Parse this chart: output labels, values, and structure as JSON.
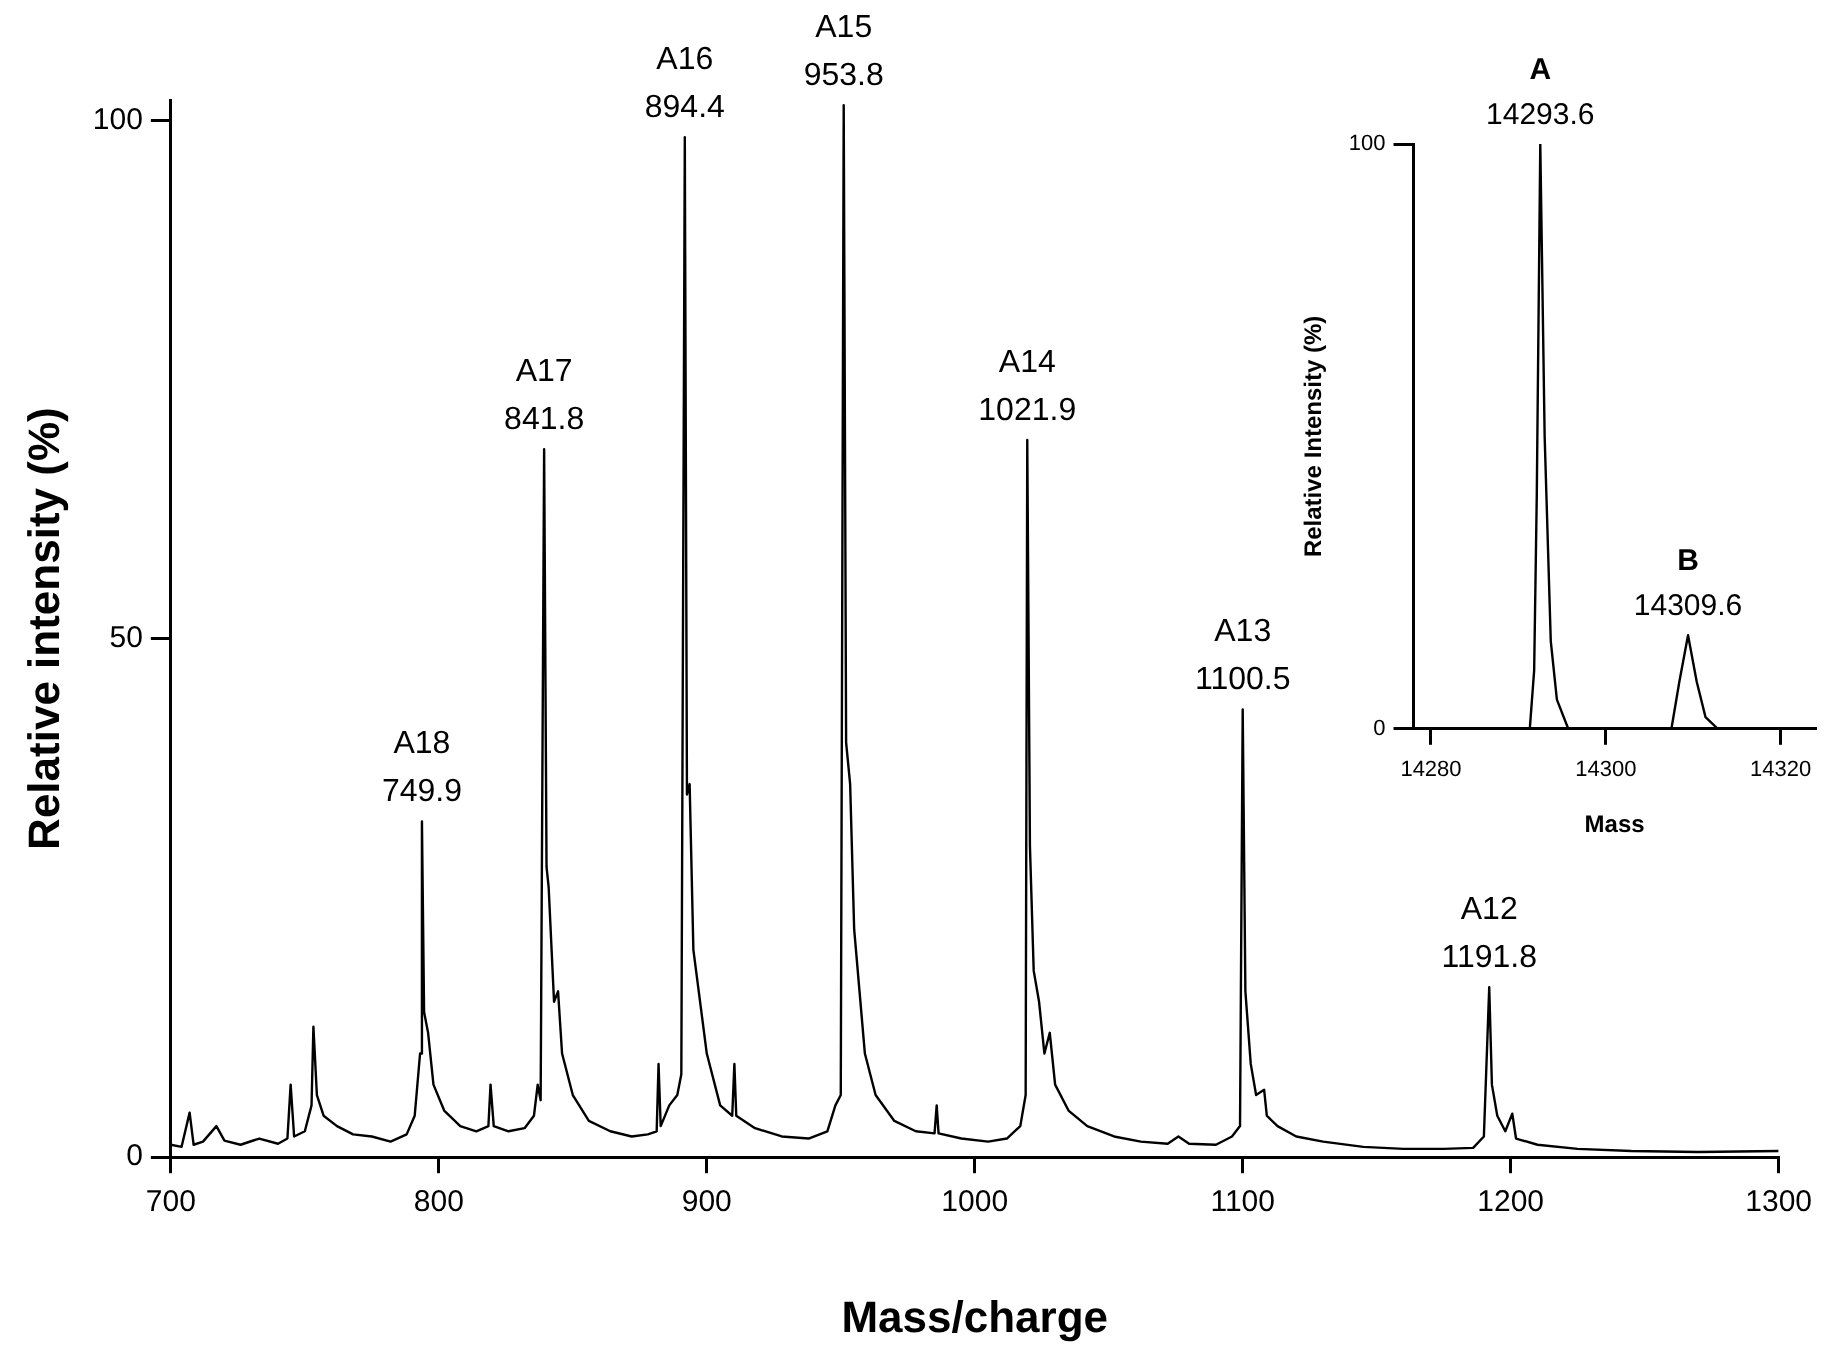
{
  "chart_data": [
    {
      "type": "line",
      "color": "#000000",
      "xlabel": "Mass/charge",
      "ylabel": "Relative intensity (%)",
      "xlim": [
        700,
        1300
      ],
      "xticks": [
        700,
        800,
        900,
        1000,
        1100,
        1200,
        1300
      ],
      "ylim": [
        0,
        102
      ],
      "yticks": [
        0,
        50,
        100
      ],
      "x": [
        700,
        704,
        707,
        708.5,
        712,
        717,
        720,
        726,
        733,
        740,
        743.5,
        744.7,
        746,
        750,
        752.5,
        753.2,
        754.5,
        757,
        762,
        768,
        775,
        782,
        788,
        791,
        793,
        793.7,
        794.5,
        796,
        798,
        802,
        808,
        814,
        818.5,
        819.3,
        820.5,
        826,
        832,
        835.5,
        836.9,
        838,
        839.3,
        840.2,
        841,
        843,
        844.5,
        846,
        850,
        856,
        864,
        872,
        878,
        881.3,
        882,
        882.8,
        886,
        889,
        890.5,
        891.8,
        892.6,
        893.6,
        895,
        897,
        900,
        905,
        909.5,
        910.3,
        911,
        918,
        928,
        938,
        945,
        948,
        950,
        951.1,
        952,
        953.5,
        955,
        957,
        959,
        963,
        970,
        978,
        985,
        985.8,
        986.5,
        995,
        1005,
        1012,
        1017,
        1019,
        1019.6,
        1020.6,
        1022,
        1024,
        1026,
        1028,
        1030,
        1035,
        1042,
        1052,
        1062,
        1072,
        1076,
        1080,
        1090,
        1096,
        1099,
        1100,
        1101,
        1103,
        1105,
        1108,
        1109,
        1113,
        1120,
        1130,
        1145,
        1160,
        1175,
        1186,
        1190,
        1192,
        1193,
        1195,
        1198,
        1200.6,
        1202,
        1210,
        1225,
        1245,
        1270,
        1300
      ],
      "values": [
        1.2,
        1.0,
        4.3,
        1.2,
        1.5,
        3,
        1.6,
        1.2,
        1.8,
        1.3,
        1.8,
        7,
        2,
        2.5,
        5,
        12.6,
        6,
        4,
        3,
        2.2,
        2,
        1.5,
        2.2,
        4,
        10,
        32.4,
        14,
        12,
        7,
        4.5,
        3,
        2.5,
        3,
        7,
        3,
        2.5,
        2.8,
        4,
        7,
        5.5,
        68.3,
        28,
        26,
        15,
        16,
        10,
        6,
        3.5,
        2.5,
        2,
        2.2,
        2.5,
        9,
        3,
        5,
        6,
        8,
        98.4,
        35,
        36,
        20,
        16,
        10,
        5,
        4,
        9,
        4,
        2.8,
        2,
        1.8,
        2.5,
        5,
        6,
        101.5,
        40,
        36,
        22,
        16,
        10,
        6,
        3.5,
        2.5,
        2.3,
        5,
        2.3,
        1.8,
        1.5,
        1.8,
        3,
        6,
        69.2,
        30,
        18,
        15,
        10,
        12,
        7,
        4.5,
        3,
        2,
        1.5,
        1.3,
        2,
        1.3,
        1.2,
        2,
        3,
        43.2,
        16,
        9,
        6,
        6.5,
        4,
        3,
        2,
        1.5,
        1,
        0.8,
        0.8,
        0.9,
        2,
        16.4,
        7,
        4,
        2.5,
        4.2,
        1.8,
        1.2,
        0.8,
        0.6,
        0.5,
        0.6
      ],
      "annotations": [
        {
          "text": "A18 749.9",
          "x": 793.7,
          "y": 32.4
        },
        {
          "text": "A17 841.8",
          "x": 839.3,
          "y": 68.3
        },
        {
          "text": "A16 894.4",
          "x": 891.8,
          "y": 98.4
        },
        {
          "text": "A15 953.8",
          "x": 951.1,
          "y": 101.5
        },
        {
          "text": "A14 1021.9",
          "x": 1019.6,
          "y": 69.2
        },
        {
          "text": "A13 1100.5",
          "x": 1100,
          "y": 43.2
        },
        {
          "text": "A12 1191.8",
          "x": 1192,
          "y": 16.4
        }
      ]
    },
    {
      "type": "line",
      "color": "#000000",
      "xlabel": "Mass",
      "ylabel": "Relative Intensity (%)",
      "xlim": [
        14278,
        14324
      ],
      "xticks": [
        14280,
        14300,
        14320
      ],
      "ylim": [
        0,
        100
      ],
      "yticks": [
        0,
        100
      ],
      "x": [
        14278,
        14291.3,
        14291.8,
        14292.1,
        14292.5,
        14293.0,
        14293.7,
        14294.4,
        14295.7,
        14307.5,
        14308.4,
        14309.4,
        14310.4,
        14311.4,
        14312.8,
        14324
      ],
      "values": [
        0,
        0,
        10,
        40,
        100,
        50,
        15,
        5,
        0,
        0,
        8,
        16,
        8,
        2,
        0,
        0
      ],
      "annotations": [
        {
          "text": "A 14293.6",
          "x": 14292.5,
          "y": 100
        },
        {
          "text": "B 14309.6",
          "x": 14309.4,
          "y": 16
        }
      ]
    }
  ]
}
